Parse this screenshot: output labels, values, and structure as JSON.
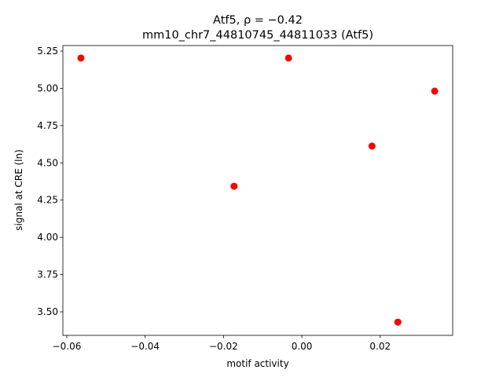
{
  "chart_data": {
    "type": "scatter",
    "title": [
      "Atf5, ρ = −0.42",
      "mm10_chr7_44810745_44811033 (Atf5)"
    ],
    "xlabel": "motif activity",
    "ylabel": "signal at CRE (ln)",
    "x": [
      -0.0564,
      -0.0034,
      0.0339,
      0.0179,
      -0.0173,
      0.0245
    ],
    "values": [
      5.203,
      5.203,
      4.981,
      4.612,
      4.343,
      3.431
    ],
    "color": "#ff0000",
    "xlim": [
      -0.061,
      0.0385
    ],
    "xticks": [
      {
        "value": -0.06,
        "label": "−0.06"
      },
      {
        "value": -0.04,
        "label": "−0.04"
      },
      {
        "value": -0.02,
        "label": "−0.02"
      },
      {
        "value": 0,
        "label": "0.00"
      },
      0.02
    ],
    "ylim": [
      3.342,
      5.287
    ],
    "yticks": [
      {
        "value": 3.5,
        "label": "3.50"
      },
      3.75,
      {
        "value": 4,
        "label": "4.00"
      },
      4.25,
      {
        "value": 4.5,
        "label": "4.50"
      },
      4.75,
      {
        "value": 5,
        "label": "5.00"
      },
      5.25
    ]
  }
}
